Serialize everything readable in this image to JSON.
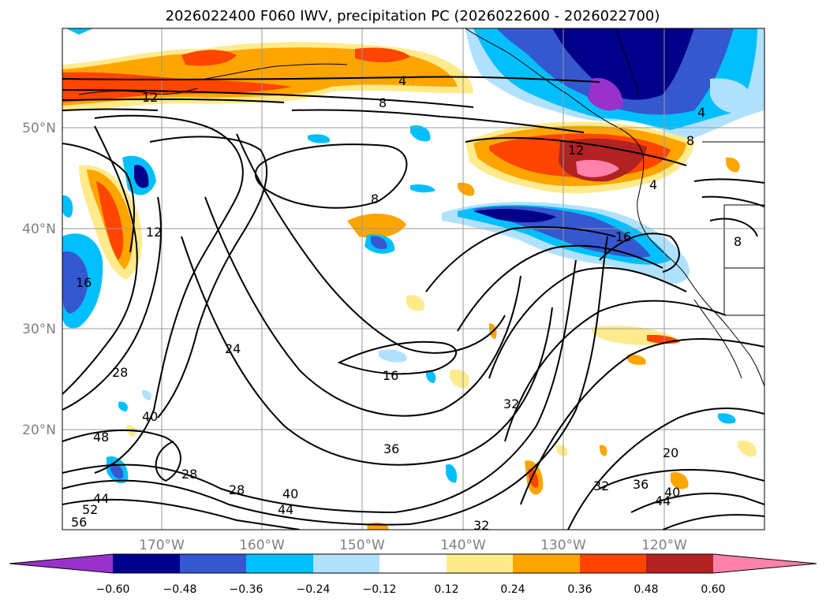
{
  "map": {
    "title": "2026022400 F060 IWV, precipitation PC (2026022600 - 2026022700)",
    "lat_labels": [
      "50°N",
      "40°N",
      "30°N",
      "20°N"
    ],
    "lon_labels": [
      "170°W",
      "160°W",
      "150°W",
      "140°W",
      "130°W",
      "120°W"
    ],
    "colorbar": {
      "colors": [
        "#9932cc",
        "#00008b",
        "#3557d0",
        "#00bfff",
        "#b0e2ff",
        "#ffffff",
        "#ffeb8c",
        "#ffa500",
        "#ff4500",
        "#b22222",
        "#ff82ab"
      ],
      "labels": [
        "−0.60",
        "−0.48",
        "−0.36",
        "−0.24",
        "−0.12",
        "0.12",
        "0.24",
        "0.36",
        "0.48",
        "0.60"
      ]
    },
    "contour_labels": [
      "4",
      "8",
      "12",
      "8",
      "4",
      "12",
      "4",
      "8",
      "16",
      "12",
      "16",
      "8",
      "16",
      "24",
      "28",
      "40",
      "48",
      "32",
      "36",
      "20",
      "28",
      "28",
      "40",
      "44",
      "32",
      "36",
      "40",
      "44",
      "32",
      "56",
      "52",
      "44"
    ]
  }
}
